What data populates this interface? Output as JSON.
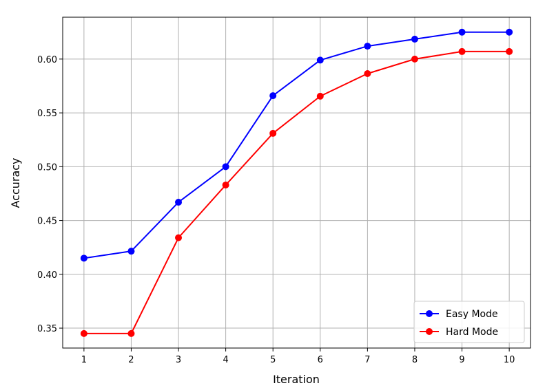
{
  "chart_data": {
    "type": "line",
    "title": "",
    "xlabel": "Iteration",
    "ylabel": "Accuracy",
    "x": [
      1,
      2,
      3,
      4,
      5,
      6,
      7,
      8,
      9,
      10
    ],
    "xlim": [
      0.55,
      10.45
    ],
    "ylim": [
      0.3315,
      0.6389
    ],
    "xticks": [
      "1",
      "2",
      "3",
      "4",
      "5",
      "6",
      "7",
      "8",
      "9",
      "10"
    ],
    "yticks": [
      "0.35",
      "0.40",
      "0.45",
      "0.50",
      "0.55",
      "0.60"
    ],
    "grid": true,
    "legend_position": "lower-right",
    "series": [
      {
        "name": "Easy Mode",
        "color": "#0000ff",
        "marker": "circle",
        "values": [
          0.415,
          0.4215,
          0.467,
          0.5,
          0.566,
          0.599,
          0.612,
          0.6185,
          0.625,
          0.625
        ]
      },
      {
        "name": "Hard Mode",
        "color": "#ff0000",
        "marker": "circle",
        "values": [
          0.345,
          0.345,
          0.434,
          0.483,
          0.531,
          0.5655,
          0.5865,
          0.6,
          0.607,
          0.607
        ]
      }
    ]
  }
}
